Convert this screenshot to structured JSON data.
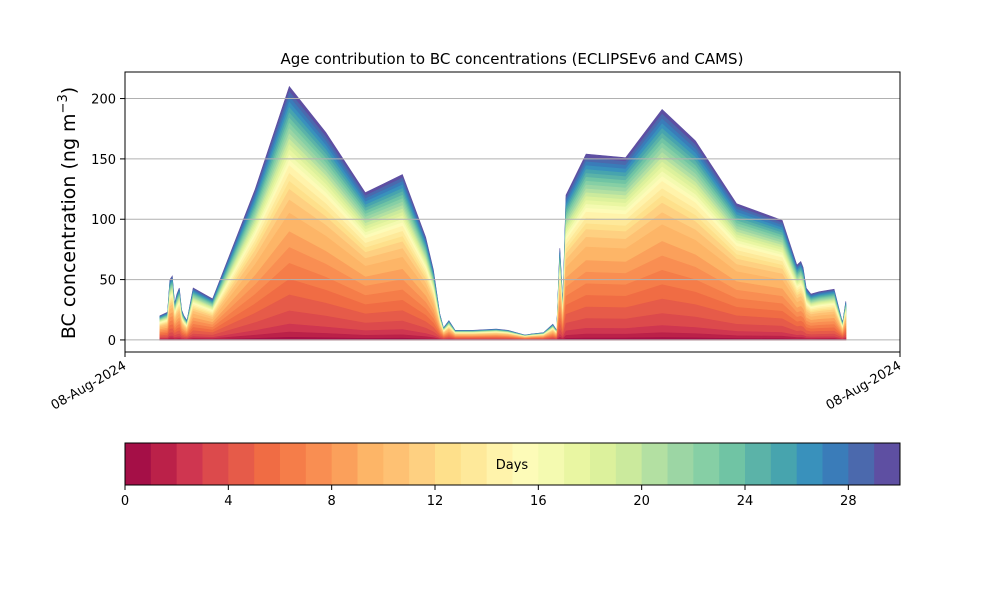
{
  "chart_data": {
    "type": "area",
    "title": "Age contribution to BC concentrations (ECLIPSEv6 and CAMS)",
    "ylabel": "BC concentration (ng m",
    "ylabel_superscript": "−3",
    "ylabel_suffix": ")",
    "xlabel": "",
    "x_tick_labels": [
      "08-Aug-2024",
      "08-Aug-2024"
    ],
    "xlim": [
      0,
      100
    ],
    "ylim": [
      -10,
      222
    ],
    "y_ticks": [
      0,
      50,
      100,
      150,
      200
    ],
    "grid": "y-major",
    "x": [
      4.5,
      5.5,
      5.8,
      6.1,
      6.4,
      6.7,
      7.0,
      7.3,
      7.6,
      8.0,
      8.8,
      11.3,
      16.8,
      21.2,
      25.9,
      31.0,
      35.8,
      38.8,
      39.8,
      40.6,
      41.1,
      41.8,
      42.6,
      44.9,
      47.9,
      49.4,
      51.6,
      52.5,
      54.0,
      55.2,
      55.7,
      56.1,
      56.5,
      56.9,
      59.5,
      64.6,
      69.3,
      73.6,
      78.9,
      84.8,
      86.7,
      87.2,
      87.5,
      87.9,
      88.5,
      89.6,
      91.5,
      92.6,
      93.0
    ],
    "total": [
      20,
      23,
      50,
      53,
      30,
      38,
      43,
      25,
      20,
      16,
      43,
      34,
      125,
      210,
      172,
      122,
      137,
      85,
      58,
      22,
      10,
      16,
      8,
      8,
      9,
      8,
      4,
      5,
      6,
      13,
      8,
      76,
      30,
      120,
      154,
      151,
      191,
      165,
      113,
      99,
      62,
      65,
      60,
      43,
      38,
      40,
      42,
      14,
      32
    ],
    "series_fractions": [
      0.01,
      0.02,
      0.03,
      0.05,
      0.06,
      0.06,
      0.06,
      0.06,
      0.06,
      0.07,
      0.05,
      0.04,
      0.03,
      0.03,
      0.03,
      0.02,
      0.02,
      0.02,
      0.02,
      0.02,
      0.02,
      0.02,
      0.02,
      0.02,
      0.02,
      0.02,
      0.02,
      0.02,
      0.02,
      0.02
    ],
    "colorbar": {
      "label": "Days",
      "range": [
        0,
        30
      ],
      "ticks": [
        0,
        4,
        8,
        12,
        16,
        20,
        24,
        28
      ],
      "colors": [
        "#a50f47",
        "#bb2149",
        "#cf3650",
        "#dc4a4c",
        "#e65b49",
        "#f06c44",
        "#f57d49",
        "#f98e52",
        "#fba05b",
        "#fdb567",
        "#fec173",
        "#fed081",
        "#fee08b",
        "#fee99a",
        "#fff3ab",
        "#fdfbb8",
        "#f4fab0",
        "#e9f6a2",
        "#dcf19c",
        "#cbea9d",
        "#b3e0a2",
        "#9cd6a4",
        "#86cfa5",
        "#70c4a4",
        "#5bb3a8",
        "#47a4ae",
        "#3991bc",
        "#3a7cb9",
        "#4b69ad",
        "#5e4fa2"
      ]
    }
  }
}
